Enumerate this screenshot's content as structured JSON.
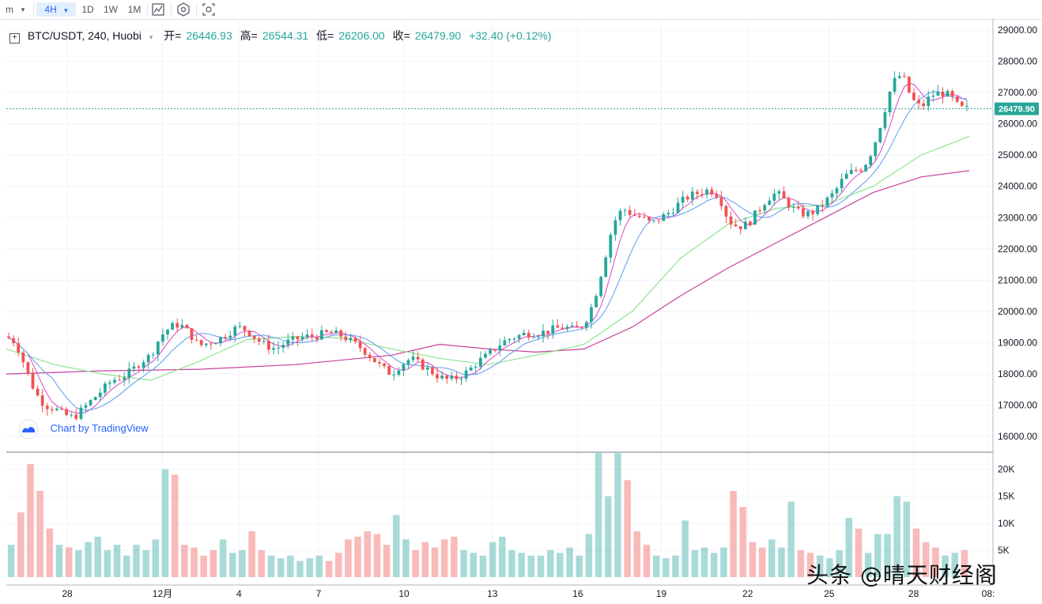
{
  "toolbar": {
    "interval_prefix": "m",
    "interval_selected": "4H",
    "intervals": [
      "1D",
      "1W",
      "1M"
    ]
  },
  "legend": {
    "symbol": "BTC/USDT, 240, Huobi",
    "open_label": "开=",
    "open_value": "26446.93",
    "high_label": "高=",
    "high_value": "26544.31",
    "low_label": "低=",
    "low_value": "26206.00",
    "close_label": "收=",
    "close_value": "26479.90",
    "change": "+32.40 (+0.12%)"
  },
  "last_price_label": "26479.90",
  "branding": "Chart by TradingView",
  "corner_watermark": "头条 @晴天财经阁",
  "colors": {
    "up": "#26a69a",
    "down": "#ef5350",
    "ma_fast": "#d946c8",
    "ma_mid": "#5b9bf0",
    "ma_slow": "#8ee38e",
    "ma_long": "#c8409c"
  },
  "chart_data": {
    "type": "candlestick",
    "price_axis": {
      "ticks": [
        "16000.00",
        "17000.00",
        "18000.00",
        "19000.00",
        "20000.00",
        "21000.00",
        "22000.00",
        "23000.00",
        "24000.00",
        "25000.00",
        "26000.00",
        "27000.00",
        "28000.00",
        "29000.00"
      ],
      "ylim": [
        15600,
        29200
      ]
    },
    "volume_axis": {
      "ticks": [
        "5K",
        "10K",
        "15K",
        "20K"
      ],
      "ylim": [
        0,
        22000
      ]
    },
    "x_ticks": [
      "28",
      "12月",
      "4",
      "7",
      "10",
      "13",
      "16",
      "19",
      "22",
      "25",
      "28",
      "08:"
    ],
    "x_tick_positions": [
      0.062,
      0.159,
      0.237,
      0.318,
      0.405,
      0.495,
      0.582,
      0.667,
      0.755,
      0.838,
      0.924,
      1.0
    ],
    "price_path": [
      [
        0.0,
        19200
      ],
      [
        0.01,
        19000
      ],
      [
        0.02,
        18200
      ],
      [
        0.03,
        17400
      ],
      [
        0.04,
        17000
      ],
      [
        0.05,
        16900
      ],
      [
        0.06,
        16700
      ],
      [
        0.07,
        16600
      ],
      [
        0.08,
        16900
      ],
      [
        0.09,
        17200
      ],
      [
        0.1,
        17500
      ],
      [
        0.11,
        17800
      ],
      [
        0.12,
        17900
      ],
      [
        0.13,
        18100
      ],
      [
        0.14,
        18400
      ],
      [
        0.15,
        18600
      ],
      [
        0.16,
        19200
      ],
      [
        0.17,
        19500
      ],
      [
        0.18,
        19600
      ],
      [
        0.19,
        19300
      ],
      [
        0.2,
        18900
      ],
      [
        0.21,
        19000
      ],
      [
        0.22,
        19100
      ],
      [
        0.23,
        19300
      ],
      [
        0.24,
        19500
      ],
      [
        0.25,
        19400
      ],
      [
        0.26,
        19100
      ],
      [
        0.27,
        18900
      ],
      [
        0.28,
        18800
      ],
      [
        0.29,
        19000
      ],
      [
        0.3,
        19100
      ],
      [
        0.31,
        19200
      ],
      [
        0.32,
        19200
      ],
      [
        0.33,
        19300
      ],
      [
        0.34,
        19300
      ],
      [
        0.35,
        19200
      ],
      [
        0.36,
        19000
      ],
      [
        0.37,
        18800
      ],
      [
        0.38,
        18500
      ],
      [
        0.39,
        18200
      ],
      [
        0.4,
        18000
      ],
      [
        0.41,
        18300
      ],
      [
        0.42,
        18500
      ],
      [
        0.43,
        18300
      ],
      [
        0.44,
        18100
      ],
      [
        0.45,
        17900
      ],
      [
        0.46,
        17800
      ],
      [
        0.47,
        17900
      ],
      [
        0.48,
        18100
      ],
      [
        0.49,
        18400
      ],
      [
        0.5,
        18600
      ],
      [
        0.51,
        18900
      ],
      [
        0.52,
        19100
      ],
      [
        0.53,
        19200
      ],
      [
        0.54,
        19300
      ],
      [
        0.55,
        19300
      ],
      [
        0.56,
        19350
      ],
      [
        0.57,
        19450
      ],
      [
        0.58,
        19500
      ],
      [
        0.59,
        19400
      ],
      [
        0.6,
        19600
      ],
      [
        0.61,
        20300
      ],
      [
        0.62,
        21500
      ],
      [
        0.63,
        22800
      ],
      [
        0.64,
        23300
      ],
      [
        0.65,
        23100
      ],
      [
        0.66,
        23000
      ],
      [
        0.67,
        22800
      ],
      [
        0.68,
        23000
      ],
      [
        0.69,
        23200
      ],
      [
        0.7,
        23500
      ],
      [
        0.71,
        23700
      ],
      [
        0.72,
        23800
      ],
      [
        0.73,
        23900
      ],
      [
        0.74,
        23700
      ],
      [
        0.75,
        22900
      ],
      [
        0.76,
        22700
      ],
      [
        0.77,
        22800
      ],
      [
        0.78,
        23200
      ],
      [
        0.79,
        23600
      ],
      [
        0.8,
        23800
      ],
      [
        0.81,
        23500
      ],
      [
        0.82,
        23200
      ],
      [
        0.83,
        23100
      ],
      [
        0.84,
        23200
      ],
      [
        0.85,
        23500
      ],
      [
        0.86,
        23800
      ],
      [
        0.87,
        24300
      ],
      [
        0.88,
        24500
      ],
      [
        0.89,
        24600
      ],
      [
        0.9,
        25200
      ],
      [
        0.91,
        26200
      ],
      [
        0.92,
        27300
      ],
      [
        0.93,
        27600
      ],
      [
        0.94,
        26800
      ],
      [
        0.95,
        26500
      ],
      [
        0.96,
        26900
      ],
      [
        0.97,
        27000
      ],
      [
        0.98,
        26900
      ],
      [
        0.99,
        26500
      ],
      [
        1.0,
        26480
      ]
    ],
    "moving_averages": [
      {
        "values": [
          [
            0.0,
            18000
          ],
          [
            0.1,
            18100
          ],
          [
            0.2,
            18150
          ],
          [
            0.3,
            18300
          ],
          [
            0.4,
            18600
          ],
          [
            0.45,
            18950
          ],
          [
            0.5,
            18800
          ],
          [
            0.55,
            18700
          ],
          [
            0.6,
            18800
          ],
          [
            0.65,
            19500
          ],
          [
            0.7,
            20500
          ],
          [
            0.75,
            21400
          ],
          [
            0.8,
            22200
          ],
          [
            0.85,
            23000
          ],
          [
            0.9,
            23800
          ],
          [
            0.95,
            24300
          ],
          [
            1.0,
            24500
          ]
        ]
      },
      {
        "values": [
          [
            0.0,
            18800
          ],
          [
            0.05,
            18300
          ],
          [
            0.1,
            18000
          ],
          [
            0.15,
            17800
          ],
          [
            0.2,
            18400
          ],
          [
            0.25,
            19100
          ],
          [
            0.3,
            19200
          ],
          [
            0.35,
            19150
          ],
          [
            0.4,
            18800
          ],
          [
            0.45,
            18500
          ],
          [
            0.5,
            18300
          ],
          [
            0.55,
            18600
          ],
          [
            0.6,
            18950
          ],
          [
            0.65,
            20000
          ],
          [
            0.7,
            21700
          ],
          [
            0.75,
            22800
          ],
          [
            0.8,
            23300
          ],
          [
            0.85,
            23400
          ],
          [
            0.9,
            24000
          ],
          [
            0.95,
            25000
          ],
          [
            1.0,
            25600
          ]
        ]
      }
    ],
    "volume": [
      [
        0.0,
        6000,
        "up"
      ],
      [
        0.01,
        12000,
        "dn"
      ],
      [
        0.02,
        21000,
        "dn"
      ],
      [
        0.03,
        16000,
        "dn"
      ],
      [
        0.04,
        9000,
        "dn"
      ],
      [
        0.05,
        6000,
        "up"
      ],
      [
        0.06,
        5500,
        "dn"
      ],
      [
        0.07,
        5000,
        "up"
      ],
      [
        0.08,
        6500,
        "up"
      ],
      [
        0.09,
        7500,
        "up"
      ],
      [
        0.1,
        5000,
        "up"
      ],
      [
        0.11,
        6000,
        "up"
      ],
      [
        0.12,
        4000,
        "up"
      ],
      [
        0.13,
        6000,
        "up"
      ],
      [
        0.14,
        5000,
        "up"
      ],
      [
        0.15,
        7000,
        "up"
      ],
      [
        0.16,
        20000,
        "up"
      ],
      [
        0.17,
        19000,
        "dn"
      ],
      [
        0.18,
        6000,
        "dn"
      ],
      [
        0.19,
        5500,
        "dn"
      ],
      [
        0.2,
        4000,
        "dn"
      ],
      [
        0.21,
        5000,
        "dn"
      ],
      [
        0.22,
        7000,
        "up"
      ],
      [
        0.23,
        4500,
        "up"
      ],
      [
        0.24,
        5000,
        "up"
      ],
      [
        0.25,
        8500,
        "dn"
      ],
      [
        0.26,
        5000,
        "dn"
      ],
      [
        0.27,
        4000,
        "up"
      ],
      [
        0.28,
        3500,
        "up"
      ],
      [
        0.29,
        4000,
        "up"
      ],
      [
        0.3,
        3000,
        "up"
      ],
      [
        0.31,
        3500,
        "up"
      ],
      [
        0.32,
        4000,
        "up"
      ],
      [
        0.33,
        3000,
        "dn"
      ],
      [
        0.34,
        4500,
        "dn"
      ],
      [
        0.35,
        7000,
        "dn"
      ],
      [
        0.36,
        7500,
        "dn"
      ],
      [
        0.37,
        8500,
        "dn"
      ],
      [
        0.38,
        8000,
        "dn"
      ],
      [
        0.39,
        6000,
        "dn"
      ],
      [
        0.4,
        11500,
        "up"
      ],
      [
        0.41,
        7000,
        "up"
      ],
      [
        0.42,
        5000,
        "dn"
      ],
      [
        0.43,
        6500,
        "dn"
      ],
      [
        0.44,
        5500,
        "dn"
      ],
      [
        0.45,
        7000,
        "dn"
      ],
      [
        0.46,
        7500,
        "dn"
      ],
      [
        0.47,
        5000,
        "up"
      ],
      [
        0.48,
        4500,
        "up"
      ],
      [
        0.49,
        4000,
        "up"
      ],
      [
        0.5,
        6500,
        "up"
      ],
      [
        0.51,
        7500,
        "up"
      ],
      [
        0.52,
        5000,
        "up"
      ],
      [
        0.53,
        4500,
        "up"
      ],
      [
        0.54,
        4000,
        "up"
      ],
      [
        0.55,
        4000,
        "up"
      ],
      [
        0.56,
        5000,
        "up"
      ],
      [
        0.57,
        4500,
        "up"
      ],
      [
        0.58,
        5500,
        "up"
      ],
      [
        0.59,
        4000,
        "up"
      ],
      [
        0.6,
        8000,
        "up"
      ],
      [
        0.61,
        23000,
        "up"
      ],
      [
        0.62,
        15000,
        "up"
      ],
      [
        0.63,
        23000,
        "up"
      ],
      [
        0.64,
        18000,
        "dn"
      ],
      [
        0.65,
        8500,
        "dn"
      ],
      [
        0.66,
        6000,
        "dn"
      ],
      [
        0.67,
        4000,
        "up"
      ],
      [
        0.68,
        3500,
        "up"
      ],
      [
        0.69,
        4000,
        "up"
      ],
      [
        0.7,
        10500,
        "up"
      ],
      [
        0.71,
        5000,
        "up"
      ],
      [
        0.72,
        5500,
        "up"
      ],
      [
        0.73,
        4500,
        "up"
      ],
      [
        0.74,
        5500,
        "up"
      ],
      [
        0.75,
        16000,
        "dn"
      ],
      [
        0.76,
        13000,
        "dn"
      ],
      [
        0.77,
        6500,
        "dn"
      ],
      [
        0.78,
        5500,
        "dn"
      ],
      [
        0.79,
        7000,
        "up"
      ],
      [
        0.8,
        5500,
        "up"
      ],
      [
        0.81,
        14000,
        "up"
      ],
      [
        0.82,
        5000,
        "dn"
      ],
      [
        0.83,
        4500,
        "dn"
      ],
      [
        0.84,
        4000,
        "up"
      ],
      [
        0.85,
        3500,
        "up"
      ],
      [
        0.86,
        5000,
        "up"
      ],
      [
        0.87,
        11000,
        "up"
      ],
      [
        0.88,
        9000,
        "dn"
      ],
      [
        0.89,
        4500,
        "up"
      ],
      [
        0.9,
        8000,
        "up"
      ],
      [
        0.91,
        8000,
        "up"
      ],
      [
        0.92,
        15000,
        "up"
      ],
      [
        0.93,
        14000,
        "up"
      ],
      [
        0.94,
        9000,
        "dn"
      ],
      [
        0.95,
        6500,
        "dn"
      ],
      [
        0.96,
        5500,
        "dn"
      ],
      [
        0.97,
        4000,
        "up"
      ],
      [
        0.98,
        4500,
        "up"
      ],
      [
        0.99,
        5000,
        "dn"
      ]
    ]
  }
}
